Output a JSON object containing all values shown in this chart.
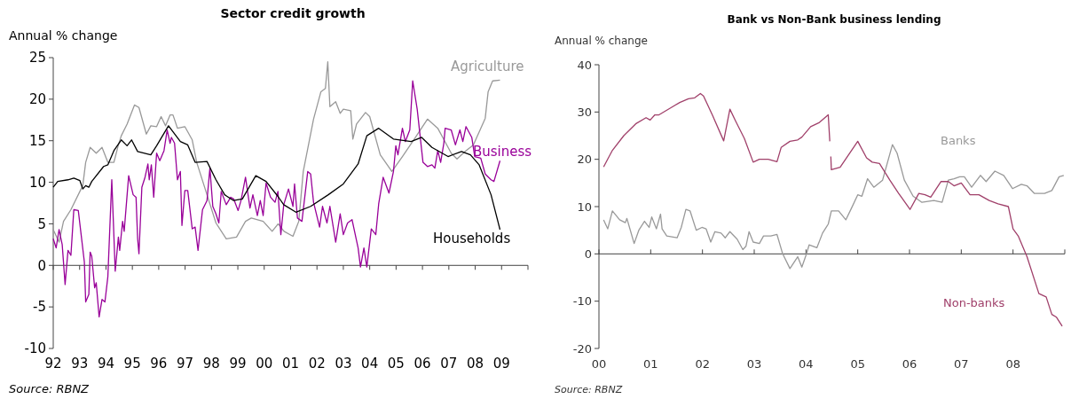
{
  "chart_data": [
    {
      "type": "line",
      "title": "Sector credit growth",
      "ylabel": "Annual % change",
      "annotations": [
        "Source: RBNZ"
      ],
      "legend": false,
      "xlim": [
        1992,
        2010
      ],
      "xticks": [
        {
          "value": 1992,
          "label": "92"
        },
        {
          "value": 1993,
          "label": "93"
        },
        {
          "value": 1994,
          "label": "94"
        },
        {
          "value": 1995,
          "label": "95"
        },
        {
          "value": 1996,
          "label": "96"
        },
        {
          "value": 1997,
          "label": "97"
        },
        {
          "value": 1998,
          "label": "98"
        },
        {
          "value": 1999,
          "label": "99"
        },
        {
          "value": 2000,
          "label": "00"
        },
        {
          "value": 2001,
          "label": "01"
        },
        {
          "value": 2002,
          "label": "02"
        },
        {
          "value": 2003,
          "label": "03"
        },
        {
          "value": 2004,
          "label": "04"
        },
        {
          "value": 2005,
          "label": "05"
        },
        {
          "value": 2006,
          "label": "06"
        },
        {
          "value": 2007,
          "label": "07"
        },
        {
          "value": 2008,
          "label": "08"
        },
        {
          "value": 2009,
          "label": "09"
        },
        {
          "value": 2010,
          "label": null
        }
      ],
      "ylim": [
        -10,
        25
      ],
      "yticks": [
        -10,
        -5,
        0,
        5,
        10,
        15,
        20,
        25
      ],
      "series": [
        {
          "name": "Agriculture",
          "color": "#999999",
          "x": [
            1992.0,
            1992.22,
            1992.39,
            1992.67,
            1993.01,
            1993.12,
            1993.23,
            1993.4,
            1993.63,
            1993.85,
            1994.07,
            1994.3,
            1994.47,
            1994.58,
            1994.8,
            1995.08,
            1995.25,
            1995.53,
            1995.7,
            1995.92,
            1996.09,
            1996.26,
            1996.43,
            1996.54,
            1996.71,
            1996.99,
            1997.27,
            1997.44,
            1997.83,
            1998.17,
            1998.56,
            1998.95,
            1999.29,
            1999.51,
            1999.96,
            2000.3,
            2000.53,
            2000.75,
            2001.09,
            2001.31,
            2001.48,
            2001.87,
            2002.15,
            2002.32,
            2002.41,
            2002.49,
            2002.71,
            2002.88,
            2003.0,
            2003.28,
            2003.36,
            2003.5,
            2003.84,
            2004.0,
            2004.4,
            2004.84,
            2005.24,
            2005.69,
            2006.19,
            2006.58,
            2007.09,
            2007.31,
            2007.65,
            2007.93,
            2008.38,
            2008.49,
            2008.66,
            2008.94
          ],
          "values": [
            4.3,
            2.8,
            5.3,
            6.7,
            8.9,
            9.6,
            12.4,
            14.2,
            13.5,
            14.2,
            12.4,
            12.4,
            14.5,
            15.6,
            17.0,
            19.3,
            19.0,
            15.8,
            16.8,
            16.7,
            17.9,
            16.8,
            18.1,
            18.1,
            16.5,
            16.7,
            15.1,
            12.4,
            8.5,
            5.1,
            3.2,
            3.4,
            5.3,
            5.7,
            5.3,
            4.1,
            5.0,
            4.1,
            3.5,
            5.3,
            11.3,
            17.6,
            20.9,
            21.3,
            24.5,
            19.1,
            19.7,
            18.3,
            18.8,
            18.6,
            15.2,
            17.0,
            18.4,
            17.9,
            13.3,
            11.3,
            13.1,
            15.2,
            17.6,
            16.5,
            13.5,
            12.8,
            13.8,
            14.5,
            17.7,
            20.9,
            22.2,
            22.3
          ]
        },
        {
          "name": "Business",
          "color": "#990099",
          "x": [
            1992.0,
            1992.11,
            1992.22,
            1992.34,
            1992.45,
            1992.56,
            1992.67,
            1992.78,
            1992.95,
            1993.18,
            1993.23,
            1993.35,
            1993.4,
            1993.46,
            1993.57,
            1993.63,
            1993.74,
            1993.85,
            1993.96,
            1994.07,
            1994.22,
            1994.35,
            1994.47,
            1994.52,
            1994.63,
            1994.69,
            1994.86,
            1995.03,
            1995.14,
            1995.2,
            1995.25,
            1995.36,
            1995.48,
            1995.59,
            1995.64,
            1995.72,
            1995.81,
            1995.92,
            1996.04,
            1996.2,
            1996.32,
            1996.43,
            1996.48,
            1996.6,
            1996.71,
            1996.82,
            1996.88,
            1996.99,
            1997.1,
            1997.27,
            1997.38,
            1997.49,
            1997.66,
            1997.83,
            1997.94,
            1998.05,
            1998.17,
            1998.28,
            1998.37,
            1998.56,
            1998.73,
            1998.84,
            1999.01,
            1999.12,
            1999.29,
            1999.46,
            1999.57,
            1999.74,
            1999.85,
            1999.96,
            2000.07,
            2000.24,
            2000.41,
            2000.52,
            2000.63,
            2000.74,
            2000.92,
            2001.09,
            2001.15,
            2001.26,
            2001.43,
            2001.65,
            2001.76,
            2001.87,
            2002.1,
            2002.21,
            2002.38,
            2002.49,
            2002.71,
            2002.88,
            2003.0,
            2003.16,
            2003.33,
            2003.56,
            2003.65,
            2003.78,
            2003.89,
            2004.06,
            2004.23,
            2004.34,
            2004.51,
            2004.73,
            2004.9,
            2004.99,
            2005.07,
            2005.24,
            2005.35,
            2005.52,
            2005.63,
            2005.8,
            2006.02,
            2006.19,
            2006.36,
            2006.47,
            2006.58,
            2006.69,
            2006.81,
            2006.86,
            2007.09,
            2007.25,
            2007.42,
            2007.53,
            2007.65,
            2007.87,
            2007.98,
            2008.21,
            2008.38,
            2008.6,
            2008.71,
            2008.94
          ],
          "values": [
            3.2,
            2.1,
            4.3,
            2.5,
            -2.3,
            1.8,
            1.2,
            6.7,
            6.6,
            0.4,
            -4.4,
            -3.5,
            1.6,
            1.1,
            -2.7,
            -2.1,
            -6.2,
            -4.1,
            -4.4,
            -1.4,
            10.3,
            -0.7,
            3.4,
            1.8,
            5.3,
            4.1,
            10.8,
            8.5,
            8.2,
            3.2,
            1.4,
            9.4,
            10.6,
            12.2,
            10.3,
            12.1,
            8.2,
            13.5,
            12.6,
            13.8,
            16.3,
            14.7,
            15.4,
            14.7,
            10.3,
            11.3,
            4.8,
            9.0,
            9.0,
            4.4,
            4.6,
            1.8,
            6.7,
            7.8,
            11.7,
            7.1,
            6.2,
            5.1,
            8.9,
            7.3,
            8.2,
            8.0,
            6.6,
            7.8,
            10.6,
            6.9,
            8.5,
            6.0,
            7.8,
            6.0,
            9.9,
            8.2,
            7.6,
            8.9,
            3.7,
            7.3,
            9.2,
            7.1,
            9.8,
            5.7,
            5.3,
            11.3,
            11.0,
            7.6,
            4.6,
            7.1,
            5.1,
            7.1,
            2.8,
            6.2,
            3.7,
            5.1,
            5.5,
            2.1,
            -0.2,
            2.1,
            -0.2,
            4.4,
            3.7,
            7.4,
            10.6,
            8.7,
            11.3,
            14.4,
            13.3,
            16.5,
            14.9,
            16.3,
            22.2,
            18.8,
            12.4,
            11.9,
            12.1,
            11.7,
            13.8,
            12.4,
            14.7,
            16.5,
            16.3,
            14.5,
            16.3,
            14.9,
            16.7,
            15.4,
            13.1,
            12.9,
            11.0,
            10.3,
            10.1,
            12.6
          ]
        },
        {
          "name": "Households",
          "color": "#000000",
          "x": [
            1992.0,
            1992.17,
            1992.56,
            1992.78,
            1993.01,
            1993.12,
            1993.23,
            1993.35,
            1993.46,
            1993.91,
            1994.07,
            1994.3,
            1994.58,
            1994.8,
            1994.97,
            1995.2,
            1995.7,
            1995.92,
            1996.37,
            1996.82,
            1997.1,
            1997.38,
            1997.83,
            1998.17,
            1998.5,
            1998.84,
            1999.17,
            1999.68,
            2000.07,
            2000.52,
            2000.74,
            2001.2,
            2001.76,
            2002.43,
            2003.0,
            2003.56,
            2003.89,
            2004.34,
            2004.9,
            2005.57,
            2005.97,
            2006.36,
            2006.97,
            2007.48,
            2007.82,
            2008.15,
            2008.6,
            2008.94
          ],
          "values": [
            9.4,
            10.1,
            10.3,
            10.5,
            10.2,
            9.2,
            9.6,
            9.4,
            10.1,
            11.9,
            12.1,
            13.8,
            15.1,
            14.4,
            15.1,
            13.7,
            13.3,
            14.4,
            16.8,
            14.9,
            14.5,
            12.4,
            12.5,
            10.3,
            8.5,
            7.8,
            8.0,
            10.8,
            10.1,
            8.3,
            7.3,
            6.4,
            7.1,
            8.5,
            9.8,
            12.2,
            15.6,
            16.5,
            15.2,
            14.9,
            15.4,
            14.2,
            13.1,
            13.7,
            13.3,
            12.1,
            8.5,
            4.3
          ]
        }
      ]
    },
    {
      "type": "line",
      "title": "Bank vs Non-Bank business lending",
      "ylabel": "Annual % change",
      "annotations": [
        "Source: RBNZ"
      ],
      "legend": false,
      "xlim": [
        2000,
        2009
      ],
      "xticks": [
        {
          "value": 2000,
          "label": "00"
        },
        {
          "value": 2001,
          "label": "01"
        },
        {
          "value": 2002,
          "label": "02"
        },
        {
          "value": 2003,
          "label": "03"
        },
        {
          "value": 2004,
          "label": "04"
        },
        {
          "value": 2005,
          "label": "05"
        },
        {
          "value": 2006,
          "label": "06"
        },
        {
          "value": 2007,
          "label": "07"
        },
        {
          "value": 2008,
          "label": "08"
        },
        {
          "value": 2009,
          "label": null
        }
      ],
      "ylim": [
        -20,
        40
      ],
      "yticks": [
        -20,
        -10,
        0,
        10,
        20,
        30,
        40
      ],
      "series": [
        {
          "name": "Banks",
          "color": "#999999",
          "x": [
            2000.09,
            2000.17,
            2000.26,
            2000.4,
            2000.51,
            2000.54,
            2000.68,
            2000.77,
            2000.88,
            2000.97,
            2001.02,
            2001.11,
            2001.19,
            2001.22,
            2001.31,
            2001.51,
            2001.59,
            2001.68,
            2001.76,
            2001.88,
            2001.99,
            2002.07,
            2002.16,
            2002.24,
            2002.36,
            2002.44,
            2002.53,
            2002.67,
            2002.78,
            2002.84,
            2002.9,
            2002.98,
            2003.1,
            2003.18,
            2003.32,
            2003.44,
            2003.55,
            2003.69,
            2003.84,
            2003.92,
            2004.01,
            2004.06,
            2004.21,
            2004.32,
            2004.43,
            2004.49,
            2004.63,
            2004.77,
            2004.88,
            2005.0,
            2005.08,
            2005.19,
            2005.31,
            2005.48,
            2005.67,
            2005.76,
            2005.9,
            2006.07,
            2006.24,
            2006.47,
            2006.63,
            2006.75,
            2006.86,
            2006.97,
            2007.06,
            2007.2,
            2007.37,
            2007.48,
            2007.65,
            2007.82,
            2007.99,
            2008.16,
            2008.27,
            2008.41,
            2008.61,
            2008.75,
            2008.89,
            2008.98
          ],
          "values": [
            7.2,
            5.3,
            9.1,
            7.2,
            6.6,
            7.5,
            2.2,
            5.0,
            6.9,
            5.6,
            7.8,
            5.3,
            8.4,
            5.3,
            3.8,
            3.4,
            5.6,
            9.4,
            9.1,
            5.0,
            5.6,
            5.3,
            2.5,
            4.7,
            4.4,
            3.4,
            4.7,
            3.1,
            0.9,
            1.6,
            4.7,
            2.5,
            2.2,
            3.8,
            3.8,
            4.1,
            0.0,
            -3.1,
            -0.6,
            -2.8,
            0.0,
            1.9,
            1.3,
            4.4,
            6.3,
            9.1,
            9.1,
            7.2,
            9.7,
            12.5,
            12.2,
            15.9,
            14.1,
            15.6,
            23.1,
            21.3,
            15.6,
            12.2,
            10.9,
            11.3,
            10.9,
            15.6,
            15.9,
            16.3,
            16.3,
            14.1,
            16.6,
            15.3,
            17.5,
            16.6,
            13.8,
            14.7,
            14.4,
            12.8,
            12.8,
            13.4,
            16.3,
            16.6
          ]
        },
        {
          "name": "Non-banks",
          "color": "#a0406a",
          "x": [
            2000.09,
            2000.26,
            2000.48,
            2000.71,
            2000.91,
            2000.99,
            2001.08,
            2001.16,
            2001.39,
            2001.56,
            2001.73,
            2001.85,
            2001.96,
            2002.02,
            2002.19,
            2002.41,
            2002.53,
            2002.64,
            2002.81,
            2002.98,
            2003.1,
            2003.27,
            2003.44,
            2003.52,
            2003.69,
            2003.84,
            2003.92,
            2004.09,
            2004.26,
            2004.43,
            2004.46,
            2004.47,
            2004.48,
            2004.49,
            2004.66,
            2005.0,
            2005.17,
            2005.28,
            2005.42,
            2005.62,
            2005.79,
            2006.01,
            2006.18,
            2006.3,
            2006.41,
            2006.61,
            2006.75,
            2006.86,
            2007.0,
            2007.17,
            2007.34,
            2007.54,
            2007.71,
            2007.91,
            2008.0,
            2008.1,
            2008.27,
            2008.5,
            2008.64,
            2008.75,
            2008.84,
            2008.95
          ],
          "values": [
            18.4,
            21.9,
            25.0,
            27.5,
            28.8,
            28.3,
            29.4,
            29.4,
            30.9,
            32.0,
            32.8,
            33.0,
            33.9,
            33.4,
            29.4,
            23.9,
            30.6,
            28.1,
            24.4,
            19.4,
            20.0,
            20.0,
            19.5,
            22.5,
            23.8,
            24.1,
            24.7,
            26.9,
            27.8,
            29.4,
            23.8,
            null,
            20.6,
            17.8,
            18.3,
            23.8,
            20.3,
            19.4,
            19.1,
            15.6,
            12.8,
            9.4,
            12.8,
            12.5,
            12.0,
            15.3,
            15.3,
            14.4,
            15.0,
            12.5,
            12.5,
            11.3,
            10.6,
            10.0,
            5.3,
            3.8,
            -0.6,
            -8.4,
            -9.1,
            -12.8,
            -13.4,
            -15.3
          ]
        }
      ]
    }
  ]
}
